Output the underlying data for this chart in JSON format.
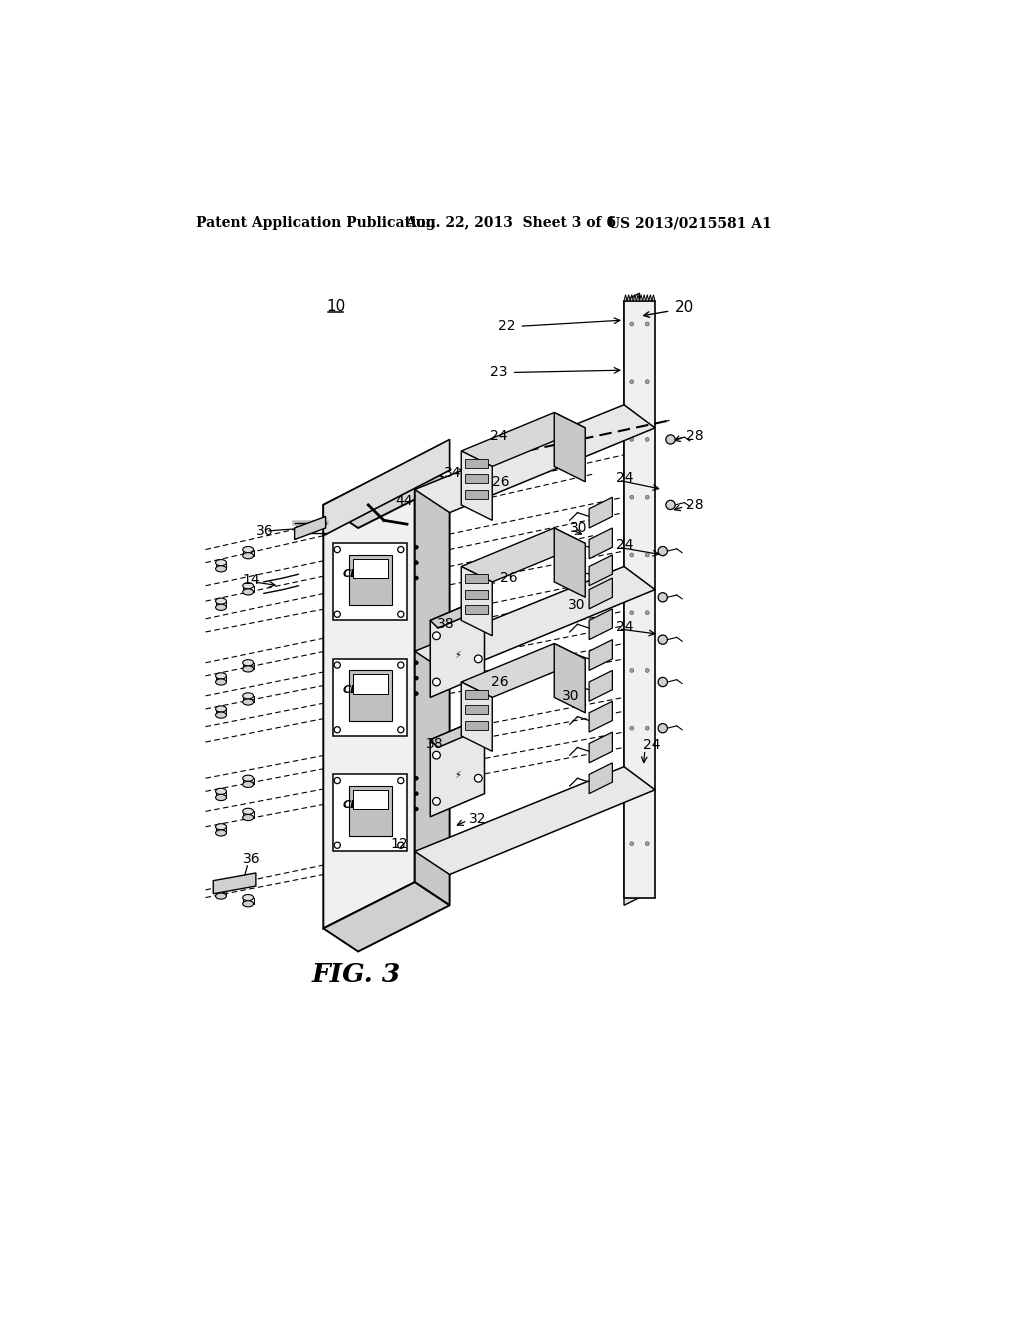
{
  "header_left": "Patent Application Publication",
  "header_mid": "Aug. 22, 2013  Sheet 3 of 6",
  "header_right": "US 2013/0215581 A1",
  "fig_label": "FIG. 3",
  "background_color": "#ffffff",
  "line_color": "#000000",
  "gray_light": "#e8e8e8",
  "gray_mid": "#d0d0d0",
  "gray_dark": "#a0a0a0"
}
